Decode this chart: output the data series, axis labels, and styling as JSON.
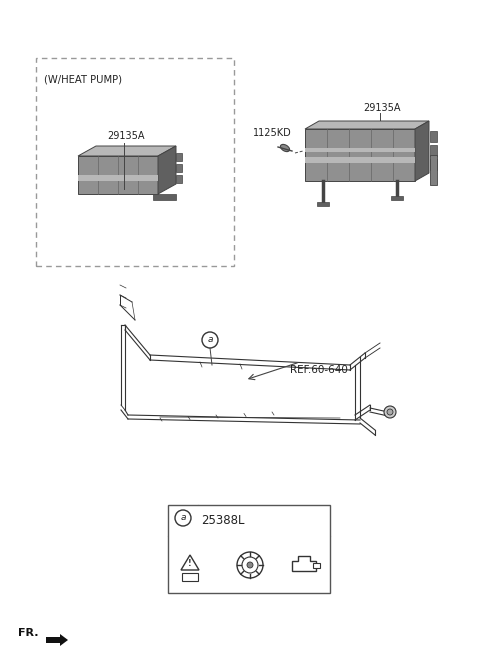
{
  "bg_color": "#ffffff",
  "box1_label": "(W/HEAT PUMP)",
  "box1_part": "29135A",
  "box2_part1": "1125KD",
  "box2_part2": "29135A",
  "ref_label": "REF.60-640",
  "legend_part": "25388L",
  "legend_symbol": "a",
  "fr_label": "FR.",
  "line_color": "#444444",
  "part_color": "#909090",
  "part_dark": "#606060",
  "part_light": "#b8b8b8",
  "part_shade": "#787878",
  "dashed_color": "#999999"
}
